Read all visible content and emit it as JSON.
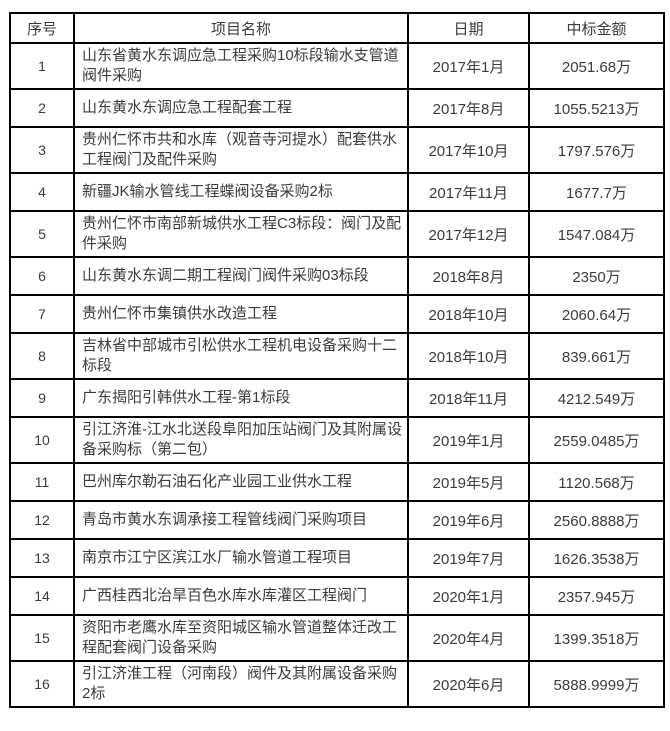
{
  "table": {
    "headers": [
      "序号",
      "项目名称",
      "日期",
      "中标金额"
    ],
    "columns": [
      "index",
      "name",
      "date",
      "amount"
    ],
    "rows": [
      {
        "index": "1",
        "name": "山东省黄水东调应急工程采购10标段输水支管道阀件采购",
        "date": "2017年1月",
        "amount": "2051.68万"
      },
      {
        "index": "2",
        "name": "山东黄水东调应急工程配套工程",
        "date": "2017年8月",
        "amount": "1055.5213万"
      },
      {
        "index": "3",
        "name": "贵州仁怀市共和水库（观音寺河提水）配套供水工程阀门及配件采购",
        "date": "2017年10月",
        "amount": "1797.576万"
      },
      {
        "index": "4",
        "name": "新疆JK输水管线工程蝶阀设备采购2标",
        "date": "2017年11月",
        "amount": "1677.7万"
      },
      {
        "index": "5",
        "name": "贵州仁怀市南部新城供水工程C3标段：阀门及配件采购",
        "date": "2017年12月",
        "amount": "1547.084万"
      },
      {
        "index": "6",
        "name": "山东黄水东调二期工程阀门阀件采购03标段",
        "date": "2018年8月",
        "amount": "2350万"
      },
      {
        "index": "7",
        "name": "贵州仁怀市集镇供水改造工程",
        "date": "2018年10月",
        "amount": "2060.64万"
      },
      {
        "index": "8",
        "name": "吉林省中部城市引松供水工程机电设备采购十二标段",
        "date": "2018年10月",
        "amount": "839.661万"
      },
      {
        "index": "9",
        "name": "广东揭阳引韩供水工程-第1标段",
        "date": "2018年11月",
        "amount": "4212.549万"
      },
      {
        "index": "10",
        "name": "引江济淮-江水北送段阜阳加压站阀门及其附属设备采购标（第二包）",
        "date": "2019年1月",
        "amount": "2559.0485万"
      },
      {
        "index": "11",
        "name": "巴州库尔勒石油石化产业园工业供水工程",
        "date": "2019年5月",
        "amount": "1120.568万"
      },
      {
        "index": "12",
        "name": "青岛市黄水东调承接工程管线阀门采购项目",
        "date": "2019年6月",
        "amount": "2560.8888万"
      },
      {
        "index": "13",
        "name": "南京市江宁区滨江水厂输水管道工程项目",
        "date": "2019年7月",
        "amount": "1626.3538万"
      },
      {
        "index": "14",
        "name": "广西桂西北治旱百色水库水库灌区工程阀门",
        "date": "2020年1月",
        "amount": "2357.945万"
      },
      {
        "index": "15",
        "name": "资阳市老鹰水库至资阳城区输水管道整体迁改工程配套阀门设备采购",
        "date": "2020年4月",
        "amount": "1399.3518万"
      },
      {
        "index": "16",
        "name": "引江济淮工程（河南段）阀件及其附属设备采购2标",
        "date": "2020年6月",
        "amount": "5888.9999万"
      }
    ]
  },
  "colors": {
    "border": "#000000",
    "text": "#3b3b3b",
    "background": "#ffffff"
  }
}
